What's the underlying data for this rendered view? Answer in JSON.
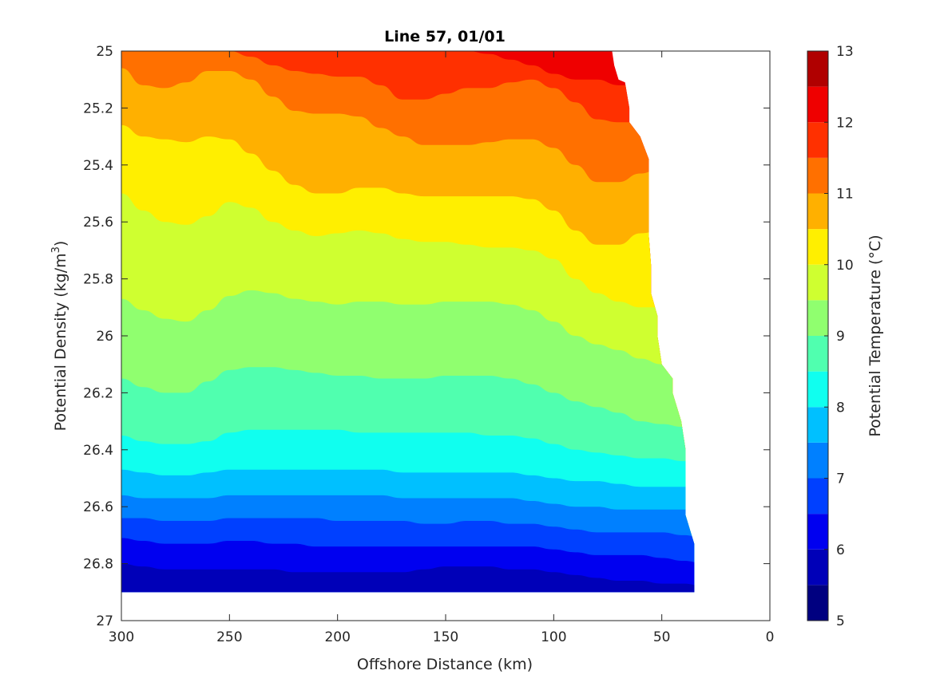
{
  "chart_data": {
    "type": "heatmap",
    "subtype": "filled-contour",
    "title": "Line 57, 01/01",
    "xlabel": "Offshore Distance (km)",
    "ylabel_main": "Potential Density (kg/m",
    "ylabel_sup": "3",
    "ylabel_end": ")",
    "colorbar_label": "Potential Temperature (°C)",
    "x_reversed": true,
    "y_reversed": true,
    "xlim": [
      0,
      300
    ],
    "ylim": [
      25,
      27
    ],
    "x_ticks": [
      {
        "v": 300,
        "label": "300"
      },
      {
        "v": 250,
        "label": "250"
      },
      {
        "v": 200,
        "label": "200"
      },
      {
        "v": 150,
        "label": "150"
      },
      {
        "v": 100,
        "label": "100"
      },
      {
        "v": 50,
        "label": "50"
      },
      {
        "v": 0,
        "label": "0"
      }
    ],
    "y_ticks": [
      {
        "v": 25.0,
        "label": "25"
      },
      {
        "v": 25.2,
        "label": "25.2"
      },
      {
        "v": 25.4,
        "label": "25.4"
      },
      {
        "v": 25.6,
        "label": "25.6"
      },
      {
        "v": 25.8,
        "label": "25.8"
      },
      {
        "v": 26.0,
        "label": "26"
      },
      {
        "v": 26.2,
        "label": "26.2"
      },
      {
        "v": 26.4,
        "label": "26.4"
      },
      {
        "v": 26.6,
        "label": "26.6"
      },
      {
        "v": 26.8,
        "label": "26.8"
      },
      {
        "v": 27.0,
        "label": "27"
      }
    ],
    "colorbar_range": [
      5,
      13
    ],
    "colorbar_ticks": [
      {
        "v": 5,
        "label": "5"
      },
      {
        "v": 6,
        "label": "6"
      },
      {
        "v": 7,
        "label": "7"
      },
      {
        "v": 8,
        "label": "8"
      },
      {
        "v": 9,
        "label": "9"
      },
      {
        "v": 10,
        "label": "10"
      },
      {
        "v": 11,
        "label": "11"
      },
      {
        "v": 12,
        "label": "12"
      },
      {
        "v": 13,
        "label": "13"
      }
    ],
    "levels": [
      {
        "min": 5.0,
        "max": 5.5,
        "color": "#000080"
      },
      {
        "min": 5.5,
        "max": 6.0,
        "color": "#0000b8"
      },
      {
        "min": 6.0,
        "max": 6.5,
        "color": "#0000f0"
      },
      {
        "min": 6.5,
        "max": 7.0,
        "color": "#0040ff"
      },
      {
        "min": 7.0,
        "max": 7.5,
        "color": "#0080ff"
      },
      {
        "min": 7.5,
        "max": 8.0,
        "color": "#00c0ff"
      },
      {
        "min": 8.0,
        "max": 8.5,
        "color": "#10ffef"
      },
      {
        "min": 8.5,
        "max": 9.0,
        "color": "#50ffaf"
      },
      {
        "min": 9.0,
        "max": 9.5,
        "color": "#90ff6f"
      },
      {
        "min": 9.5,
        "max": 10.0,
        "color": "#cfff30"
      },
      {
        "min": 10.0,
        "max": 10.5,
        "color": "#ffef00"
      },
      {
        "min": 10.5,
        "max": 11.0,
        "color": "#ffb000"
      },
      {
        "min": 11.0,
        "max": 11.5,
        "color": "#ff7000"
      },
      {
        "min": 11.5,
        "max": 12.0,
        "color": "#ff3000"
      },
      {
        "min": 12.0,
        "max": 12.5,
        "color": "#ef0000"
      },
      {
        "min": 12.5,
        "max": 13.0,
        "color": "#b00000"
      }
    ],
    "x_samples": [
      300,
      290,
      280,
      270,
      260,
      250,
      240,
      230,
      220,
      210,
      200,
      190,
      180,
      170,
      160,
      150,
      140,
      130,
      120,
      110,
      100,
      90,
      80,
      70,
      60,
      50,
      40,
      30
    ],
    "contours": [
      {
        "level": 12.0,
        "y": [
          null,
          null,
          null,
          null,
          null,
          null,
          null,
          null,
          null,
          null,
          null,
          null,
          null,
          null,
          null,
          null,
          25.0,
          25.01,
          25.03,
          25.05,
          25.08,
          25.1,
          25.1,
          25.12,
          25.12,
          25.11,
          null,
          null
        ]
      },
      {
        "level": 11.5,
        "y": [
          null,
          null,
          null,
          null,
          null,
          25.0,
          25.02,
          25.05,
          25.07,
          25.08,
          25.09,
          25.09,
          25.12,
          25.17,
          25.17,
          25.15,
          25.13,
          25.13,
          25.11,
          25.1,
          25.13,
          25.18,
          25.24,
          25.25,
          25.25,
          25.21,
          25.23,
          25.28
        ]
      },
      {
        "level": 11.0,
        "y": [
          25.06,
          25.12,
          25.13,
          25.11,
          25.07,
          25.07,
          25.1,
          25.16,
          25.21,
          25.22,
          25.22,
          25.23,
          25.27,
          25.3,
          25.33,
          25.33,
          25.33,
          25.32,
          25.31,
          25.31,
          25.34,
          25.4,
          25.46,
          25.46,
          25.43,
          25.41,
          25.47,
          25.5
        ]
      },
      {
        "level": 10.5,
        "y": [
          25.26,
          25.3,
          25.31,
          25.32,
          25.3,
          25.31,
          25.36,
          25.42,
          25.47,
          25.5,
          25.5,
          25.48,
          25.48,
          25.5,
          25.51,
          25.51,
          25.51,
          25.51,
          25.51,
          25.52,
          25.56,
          25.63,
          25.68,
          25.68,
          25.64,
          25.63,
          25.7,
          25.74
        ]
      },
      {
        "level": 10.0,
        "y": [
          25.5,
          25.56,
          25.6,
          25.61,
          25.58,
          25.53,
          25.55,
          25.6,
          25.63,
          25.65,
          25.64,
          25.63,
          25.64,
          25.66,
          25.67,
          25.67,
          25.68,
          25.69,
          25.69,
          25.7,
          25.73,
          25.8,
          25.85,
          25.88,
          25.9,
          25.9,
          25.95,
          25.97
        ]
      },
      {
        "level": 9.5,
        "y": [
          25.87,
          25.91,
          25.94,
          25.95,
          25.91,
          25.86,
          25.84,
          25.85,
          25.87,
          25.88,
          25.89,
          25.88,
          25.88,
          25.89,
          25.89,
          25.88,
          25.88,
          25.88,
          25.89,
          25.91,
          25.95,
          26.0,
          26.03,
          26.05,
          26.08,
          26.1,
          26.14,
          26.16
        ]
      },
      {
        "level": 9.0,
        "y": [
          26.15,
          26.18,
          26.2,
          26.2,
          26.16,
          26.12,
          26.11,
          26.11,
          26.12,
          26.13,
          26.14,
          26.14,
          26.15,
          26.15,
          26.15,
          26.14,
          26.14,
          26.14,
          26.15,
          26.17,
          26.2,
          26.23,
          26.25,
          26.27,
          26.3,
          26.31,
          26.32,
          26.34
        ]
      },
      {
        "level": 8.5,
        "y": [
          26.35,
          26.37,
          26.38,
          26.38,
          26.37,
          26.34,
          26.33,
          26.33,
          26.33,
          26.33,
          26.33,
          26.34,
          26.34,
          26.34,
          26.34,
          26.34,
          26.34,
          26.35,
          26.35,
          26.36,
          26.38,
          26.4,
          26.41,
          26.42,
          26.43,
          26.43,
          26.44,
          26.44
        ]
      },
      {
        "level": 8.0,
        "y": [
          26.47,
          26.48,
          26.49,
          26.49,
          26.48,
          26.47,
          26.47,
          26.47,
          26.47,
          26.47,
          26.47,
          26.47,
          26.47,
          26.48,
          26.48,
          26.48,
          26.48,
          26.48,
          26.48,
          26.49,
          26.5,
          26.51,
          26.51,
          26.52,
          26.53,
          26.53,
          26.53,
          26.53
        ]
      },
      {
        "level": 7.5,
        "y": [
          26.56,
          26.57,
          26.57,
          26.57,
          26.57,
          26.56,
          26.56,
          26.56,
          26.56,
          26.56,
          26.56,
          26.56,
          26.56,
          26.57,
          26.57,
          26.57,
          26.57,
          26.57,
          26.57,
          26.58,
          26.59,
          26.6,
          26.6,
          26.61,
          26.61,
          26.61,
          26.61,
          26.61
        ]
      },
      {
        "level": 7.0,
        "y": [
          26.64,
          26.64,
          26.65,
          26.65,
          26.65,
          26.64,
          26.64,
          26.64,
          26.64,
          26.64,
          26.65,
          26.65,
          26.65,
          26.65,
          26.66,
          26.66,
          26.65,
          26.65,
          26.66,
          26.66,
          26.67,
          26.68,
          26.69,
          26.69,
          26.69,
          26.69,
          26.7,
          26.71
        ]
      },
      {
        "level": 6.5,
        "y": [
          26.71,
          26.72,
          26.73,
          26.73,
          26.73,
          26.72,
          26.72,
          26.73,
          26.73,
          26.74,
          26.74,
          26.74,
          26.74,
          26.74,
          26.74,
          26.74,
          26.74,
          26.74,
          26.74,
          26.74,
          26.75,
          26.76,
          26.77,
          26.77,
          26.77,
          26.78,
          26.79,
          26.8
        ]
      },
      {
        "level": 6.0,
        "y": [
          26.8,
          26.81,
          26.82,
          26.82,
          26.82,
          26.82,
          26.82,
          26.82,
          26.83,
          26.83,
          26.83,
          26.83,
          26.83,
          26.83,
          26.82,
          26.81,
          26.81,
          26.81,
          26.82,
          26.82,
          26.83,
          26.84,
          26.85,
          26.86,
          26.86,
          26.87,
          26.87,
          26.88
        ]
      }
    ],
    "data_boundary": {
      "bottom_density": 26.9,
      "edge_points": [
        [
          300,
          26.9
        ],
        [
          35,
          26.9
        ],
        [
          35,
          26.73
        ],
        [
          39,
          26.63
        ],
        [
          39,
          26.48
        ],
        [
          39,
          26.4
        ],
        [
          41,
          26.3
        ],
        [
          45,
          26.2
        ],
        [
          45,
          26.15
        ],
        [
          50,
          26.1
        ],
        [
          52,
          26.0
        ],
        [
          52,
          25.93
        ],
        [
          55,
          25.85
        ],
        [
          55,
          25.75
        ],
        [
          56,
          25.65
        ],
        [
          56,
          25.38
        ],
        [
          60,
          25.3
        ],
        [
          65,
          25.25
        ],
        [
          65,
          25.2
        ],
        [
          67,
          25.11
        ],
        [
          70,
          25.1
        ],
        [
          72,
          25.05
        ],
        [
          73,
          25.0
        ],
        [
          300,
          25.0
        ]
      ]
    }
  }
}
